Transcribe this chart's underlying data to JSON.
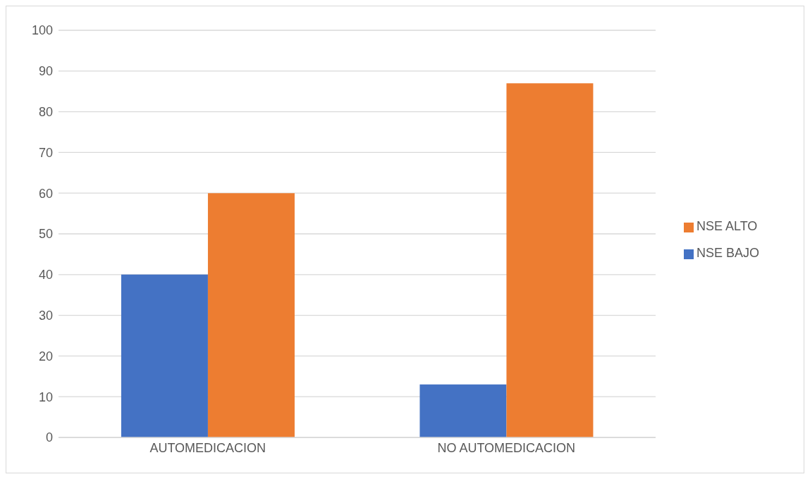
{
  "chart_data": {
    "type": "bar",
    "categories": [
      "AUTOMEDICACION",
      "NO AUTOMEDICACION"
    ],
    "series": [
      {
        "name": "NSE BAJO",
        "color": "#4472c4",
        "values": [
          40,
          13
        ]
      },
      {
        "name": "NSE ALTO",
        "color": "#ed7d31",
        "values": [
          60,
          87
        ]
      }
    ],
    "ylim": [
      0,
      100
    ],
    "yticks": [
      0,
      10,
      20,
      30,
      40,
      50,
      60,
      70,
      80,
      90,
      100
    ],
    "grid": "y",
    "legend": "right"
  }
}
